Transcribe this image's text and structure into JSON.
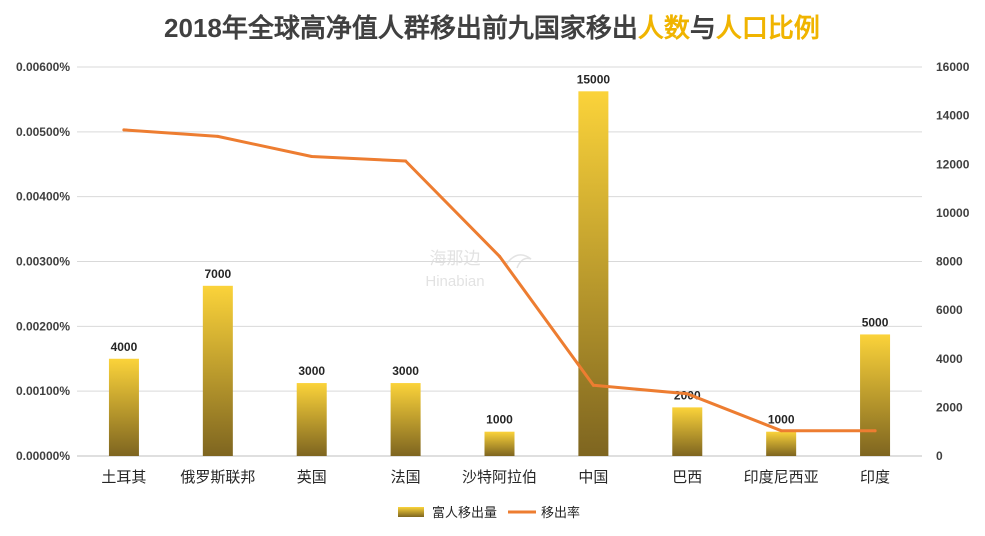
{
  "chart_data": {
    "type": "bar",
    "title": {
      "part1": "2018年全球高净值人群移出前九国家移出",
      "part2": "人数",
      "part3": "与",
      "part4": "人口比例"
    },
    "categories": [
      "土耳其",
      "俄罗斯联邦",
      "英国",
      "法国",
      "沙特阿拉伯",
      "中国",
      "巴西",
      "印度尼西亚",
      "印度"
    ],
    "series": [
      {
        "name": "富人移出量",
        "type": "bar",
        "axis": "right",
        "values": [
          4000,
          7000,
          3000,
          3000,
          1000,
          15000,
          2000,
          1000,
          5000
        ],
        "labels": [
          "4000",
          "7000",
          "3000",
          "3000",
          "1000",
          "15000",
          "2000",
          "1000",
          "5000"
        ]
      },
      {
        "name": "移出率",
        "type": "line",
        "axis": "left",
        "values": [
          0.00503,
          0.00493,
          0.00462,
          0.00455,
          0.00308,
          0.00109,
          0.00096,
          0.00039,
          0.00039
        ]
      }
    ],
    "y_left": {
      "min": 0,
      "max": 0.006,
      "ticks": [
        0,
        0.001,
        0.002,
        0.003,
        0.004,
        0.005,
        0.006
      ],
      "tick_labels": [
        "0.00000%",
        "0.00100%",
        "0.00200%",
        "0.00300%",
        "0.00400%",
        "0.00500%",
        "0.00600%"
      ]
    },
    "y_right": {
      "min": 0,
      "max": 16000,
      "ticks": [
        0,
        2000,
        4000,
        6000,
        8000,
        10000,
        12000,
        14000,
        16000
      ],
      "tick_labels": [
        "0",
        "2000",
        "4000",
        "6000",
        "8000",
        "10000",
        "12000",
        "14000",
        "16000"
      ]
    },
    "grid": true,
    "legend": "bottom-center",
    "watermark": {
      "line1": "海那边",
      "line2": "Hinabian"
    },
    "colors": {
      "title": "#404040",
      "title_highlight": "#f0b400",
      "bar_top": "#fbd33a",
      "bar_bottom": "#7e6520",
      "line": "#ed7d31",
      "grid": "#d9d9d9"
    }
  }
}
